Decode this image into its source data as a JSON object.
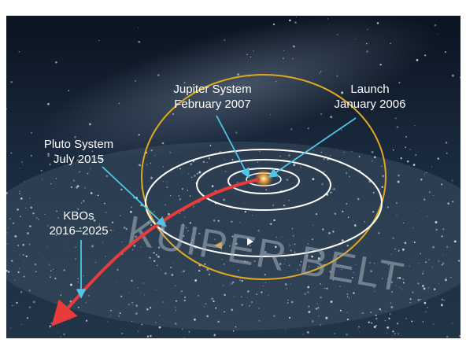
{
  "labels": [
    {
      "title": "Jupiter System",
      "subtitle": "February 2007"
    },
    {
      "title": "Launch",
      "subtitle": "January 2006"
    },
    {
      "title": "Pluto System",
      "subtitle": "July 2015"
    },
    {
      "title": "KBOs",
      "subtitle": "2016–2025"
    }
  ],
  "region": "KUIPER BELT"
}
